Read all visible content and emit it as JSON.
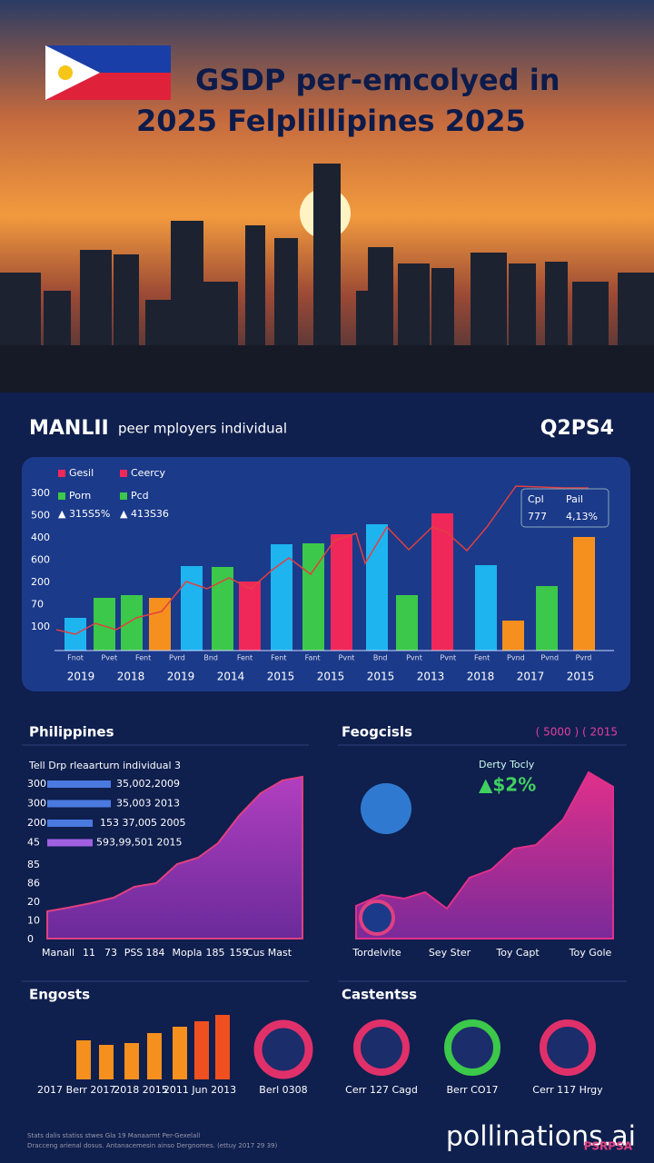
{
  "header": {
    "title_line1": "GSDP per-emcolyed in",
    "title_line2": "2025 Felplillipines 2025"
  },
  "main": {
    "heading": "MANLII",
    "subheading": "peer mployers individual",
    "badge": "Q2PS4",
    "legend": [
      "Gesil",
      "Ceercy",
      "Porn",
      "Pcd",
      "▲ 315S5%",
      "▲ 413S36"
    ],
    "inset_legend": [
      "Cpl",
      "Pail",
      "777",
      "4,13%"
    ],
    "y_labels": [
      "300",
      "500",
      "400",
      "600",
      "200",
      "70",
      "100"
    ],
    "bar_labels": [
      "Fnot",
      "Pvet",
      "Fent",
      "Pvrd",
      "Bnd",
      "Fent",
      "Fent",
      "Fant",
      "Pvnt",
      "Bnd",
      "Pvnt",
      "Pvnt",
      "Fent",
      "Pvnd",
      "Pvnd",
      "Pvrd"
    ],
    "years": [
      "2019",
      "2018",
      "2019",
      "2014",
      "2015",
      "2015",
      "2015",
      "2013",
      "2018",
      "2017",
      "2015"
    ]
  },
  "left_panel": {
    "heading": "Philippines",
    "subheading": "Tell Drp rleaarturn individual 3",
    "rows": [
      {
        "label": "300",
        "text": "35,002,2009"
      },
      {
        "label": "300",
        "text": "35,003 2013"
      },
      {
        "label": "200",
        "text": "153 37,005 2005"
      },
      {
        "label": "45",
        "text": "593,99,501 2015"
      }
    ],
    "y_labels": [
      "85",
      "86",
      "20",
      "10",
      "0"
    ],
    "x_labels": [
      "Manall",
      "11",
      "73",
      "PSS",
      "184",
      "Mopla",
      "185",
      "159",
      "Cus Mast"
    ]
  },
  "right_panel": {
    "heading": "Feogcisls",
    "badge": "( 5000 ) ( 2015",
    "note": "Derty Tocly",
    "change": "▲$2%",
    "x_labels": [
      "Tordelvite",
      "Sey Ster",
      "Toy Capt",
      "Toy Gole"
    ]
  },
  "bottom_left": {
    "heading": "Engosts",
    "labels": [
      "2017",
      "Berr 2017",
      "2018 2015",
      "2011 Jun 2013",
      "Berl 0308"
    ]
  },
  "bottom_right": {
    "heading": "Castentss",
    "labels": [
      "Cerr 127 Cagd",
      "Berr CO17",
      "Cerr 117 Hrgy"
    ]
  },
  "footer": {
    "fine_print_1": "Stats dalis statiss stwes Gla 19 Manaarmt Per-Gexelall",
    "fine_print_2": "Dracceng arienal dosus. Antanacemesin ainso Dergnomes. (ettuy 2017 29 39)",
    "brand": "pollinations.ai",
    "logo": "PSRPSA"
  }
}
